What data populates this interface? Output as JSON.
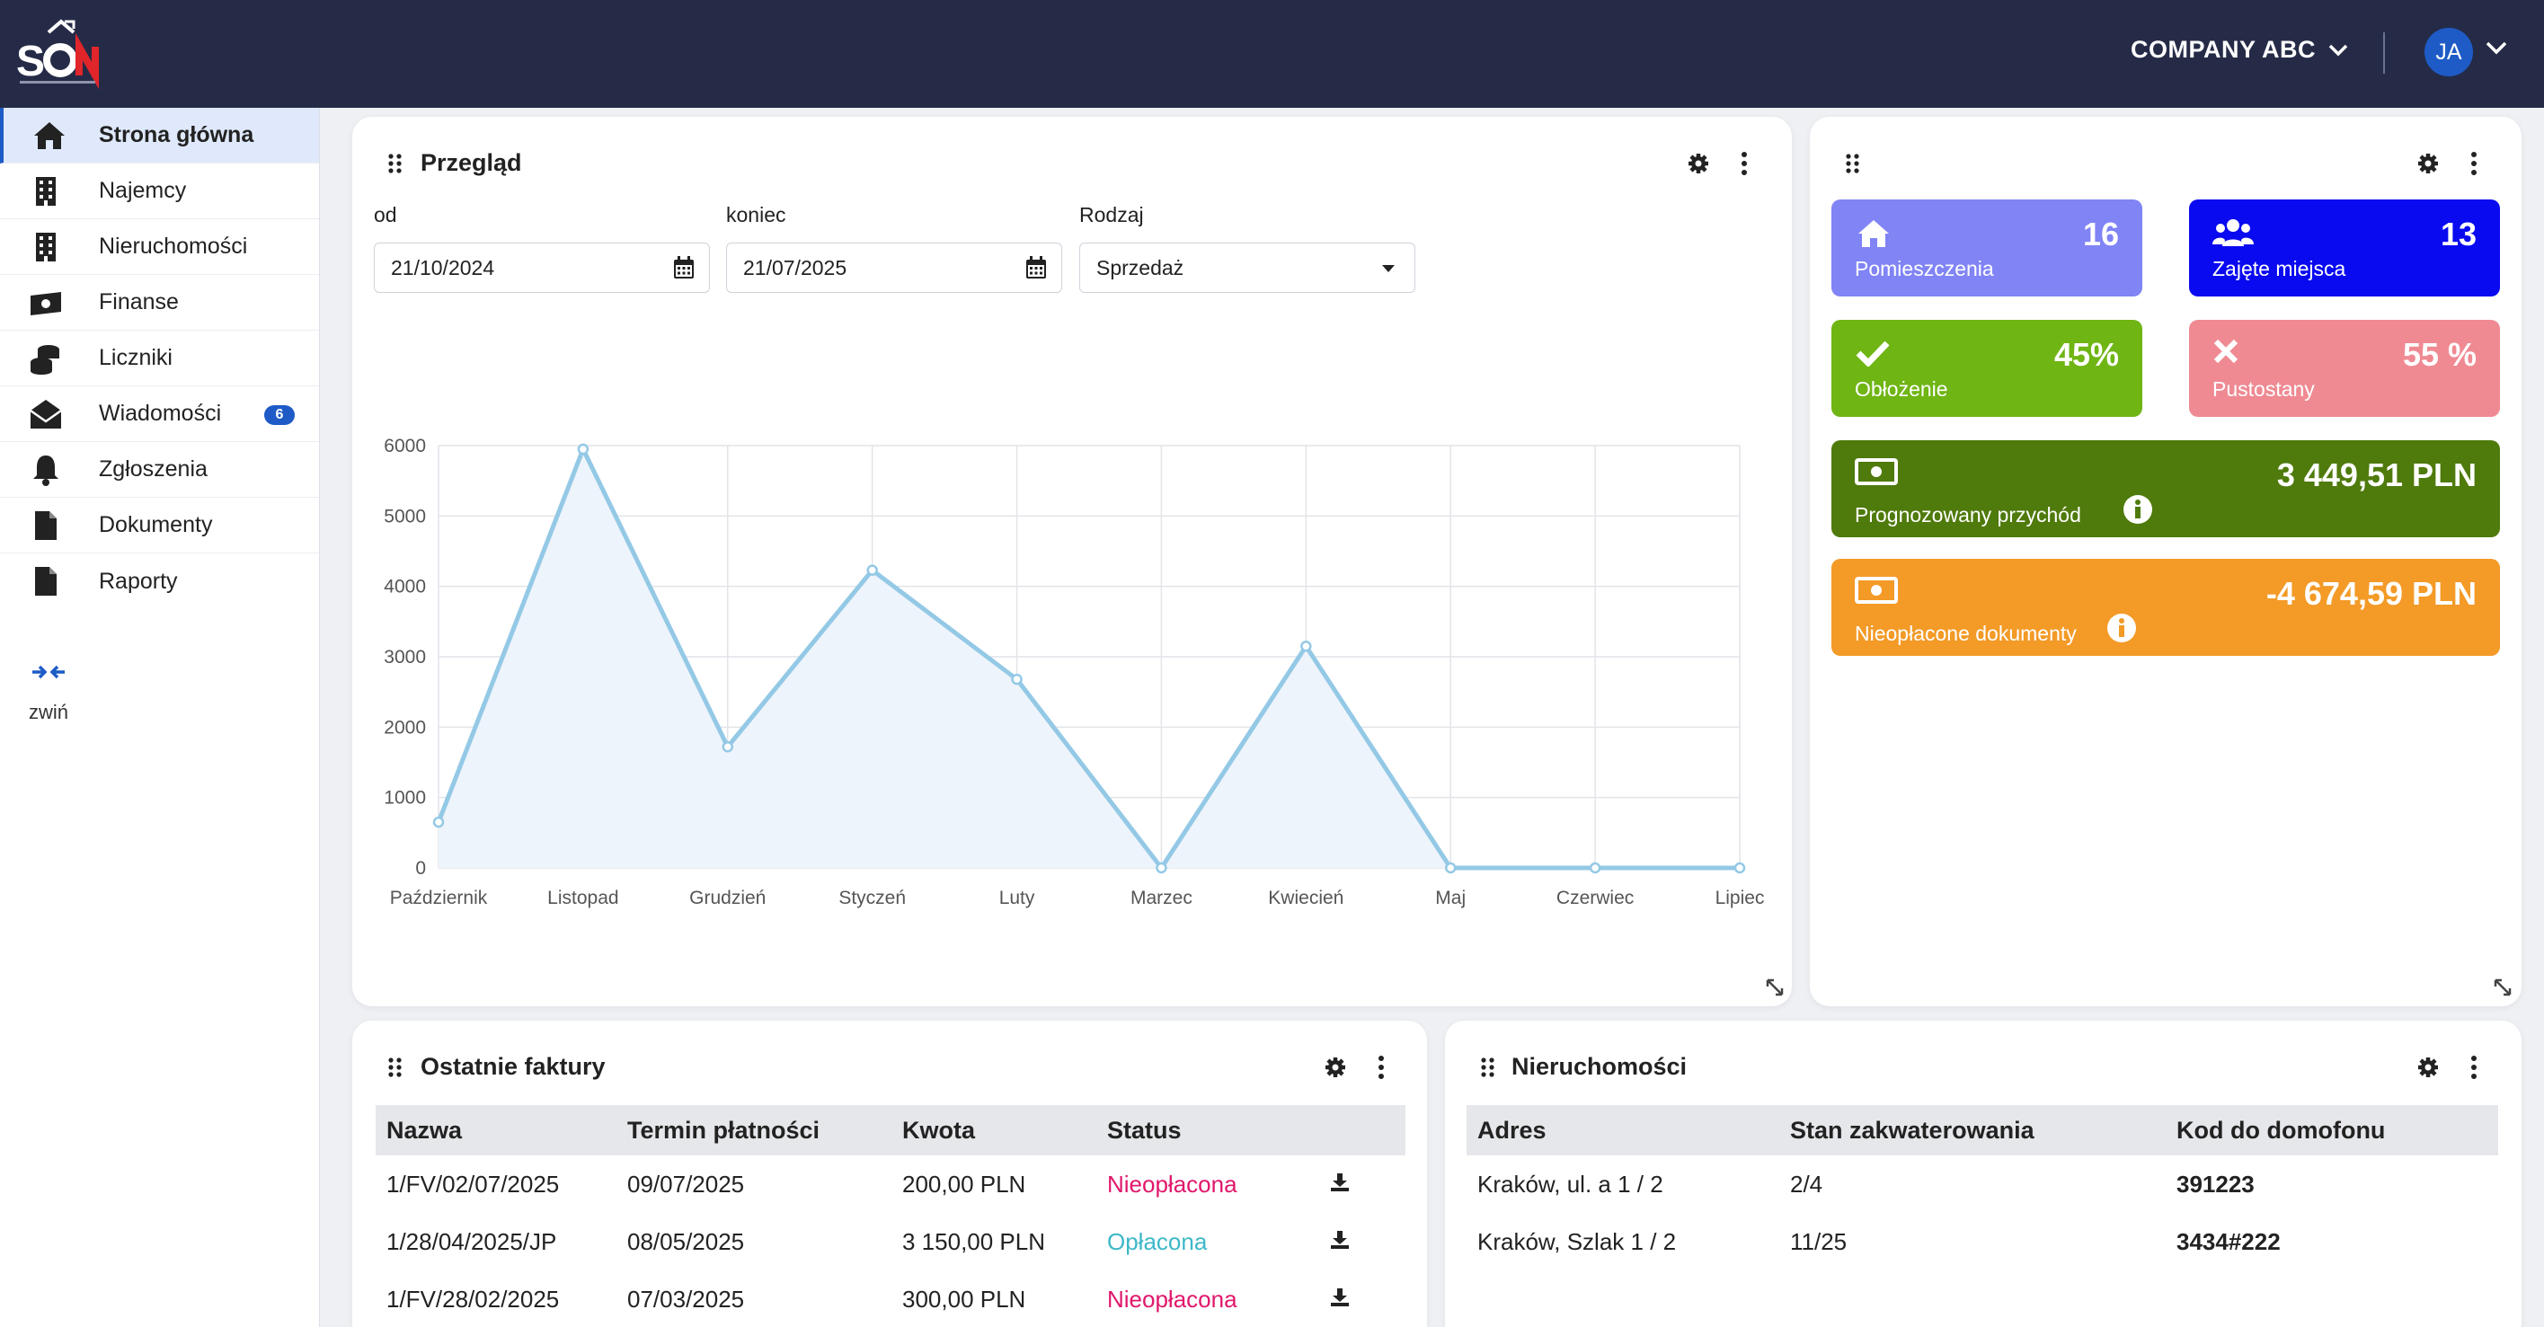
{
  "header": {
    "company": "COMPANY ABC",
    "user_initials": "JA"
  },
  "sidebar": {
    "items": [
      {
        "label": "Strona główna",
        "icon": "home-icon",
        "active": true
      },
      {
        "label": "Najemcy",
        "icon": "building-icon"
      },
      {
        "label": "Nieruchomości",
        "icon": "building-icon"
      },
      {
        "label": "Finanse",
        "icon": "money-icon"
      },
      {
        "label": "Liczniki",
        "icon": "coins-icon"
      },
      {
        "label": "Wiadomości",
        "icon": "envelope-icon",
        "badge": "6"
      },
      {
        "label": "Zgłoszenia",
        "icon": "bell-icon"
      },
      {
        "label": "Dokumenty",
        "icon": "file-icon"
      },
      {
        "label": "Raporty",
        "icon": "file-icon"
      }
    ],
    "collapse_label": "zwiń"
  },
  "overview": {
    "title": "Przegląd",
    "from_label": "od",
    "from_value": "21/10/2024",
    "to_label": "koniec",
    "to_value": "21/07/2025",
    "type_label": "Rodzaj",
    "type_value": "Sprzedaż"
  },
  "chart_data": {
    "type": "area",
    "categories": [
      "Październik",
      "Listopad",
      "Grudzień",
      "Styczeń",
      "Luty",
      "Marzec",
      "Kwiecień",
      "Maj",
      "Czerwiec",
      "Lipiec"
    ],
    "values": [
      650,
      5950,
      1720,
      4230,
      2680,
      0,
      3150,
      0,
      0,
      0
    ],
    "ylim": [
      0,
      6000
    ],
    "yticks": [
      0,
      1000,
      2000,
      3000,
      4000,
      5000,
      6000
    ],
    "grid": true,
    "line_color": "#94c9e6",
    "fill_color": "#eef4fb"
  },
  "stats": {
    "rooms": {
      "label": "Pomieszczenia",
      "value": "16",
      "color": "#8084f5"
    },
    "occupied": {
      "label": "Zajęte miejsca",
      "value": "13",
      "color": "#0a0af0"
    },
    "occupancy": {
      "label": "Obłożenie",
      "value": "45%",
      "color": "#6fb514"
    },
    "vacancy": {
      "label": "Pustostany",
      "value": "55 %",
      "color": "#ef8a93"
    },
    "forecast": {
      "label": "Prognozowany przychód",
      "value": "3 449,51 PLN",
      "color": "#4f7a0c"
    },
    "unpaid": {
      "label": "Nieopłacone dokumenty",
      "value": "-4 674,59 PLN",
      "color": "#f39a27"
    }
  },
  "invoices": {
    "title": "Ostatnie faktury",
    "columns": [
      "Nazwa",
      "Termin płatności",
      "Kwota",
      "Status"
    ],
    "rows": [
      {
        "name": "1/FV/02/07/2025",
        "due": "09/07/2025",
        "amount": "200,00 PLN",
        "status": "Nieopłacona",
        "paid": false
      },
      {
        "name": "1/28/04/2025/JP",
        "due": "08/05/2025",
        "amount": "3 150,00 PLN",
        "status": "Opłacona",
        "paid": true
      },
      {
        "name": "1/FV/28/02/2025",
        "due": "07/03/2025",
        "amount": "300,00 PLN",
        "status": "Nieopłacona",
        "paid": false
      }
    ]
  },
  "properties": {
    "title": "Nieruchomości",
    "columns": [
      "Adres",
      "Stan zakwaterowania",
      "Kod do domofonu"
    ],
    "rows": [
      {
        "address": "Kraków, ul. a 1 / 2",
        "occupancy": "2/4",
        "code": "391223"
      },
      {
        "address": "Kraków, Szlak 1 / 2",
        "occupancy": "11/25",
        "code": "3434#222"
      }
    ]
  }
}
